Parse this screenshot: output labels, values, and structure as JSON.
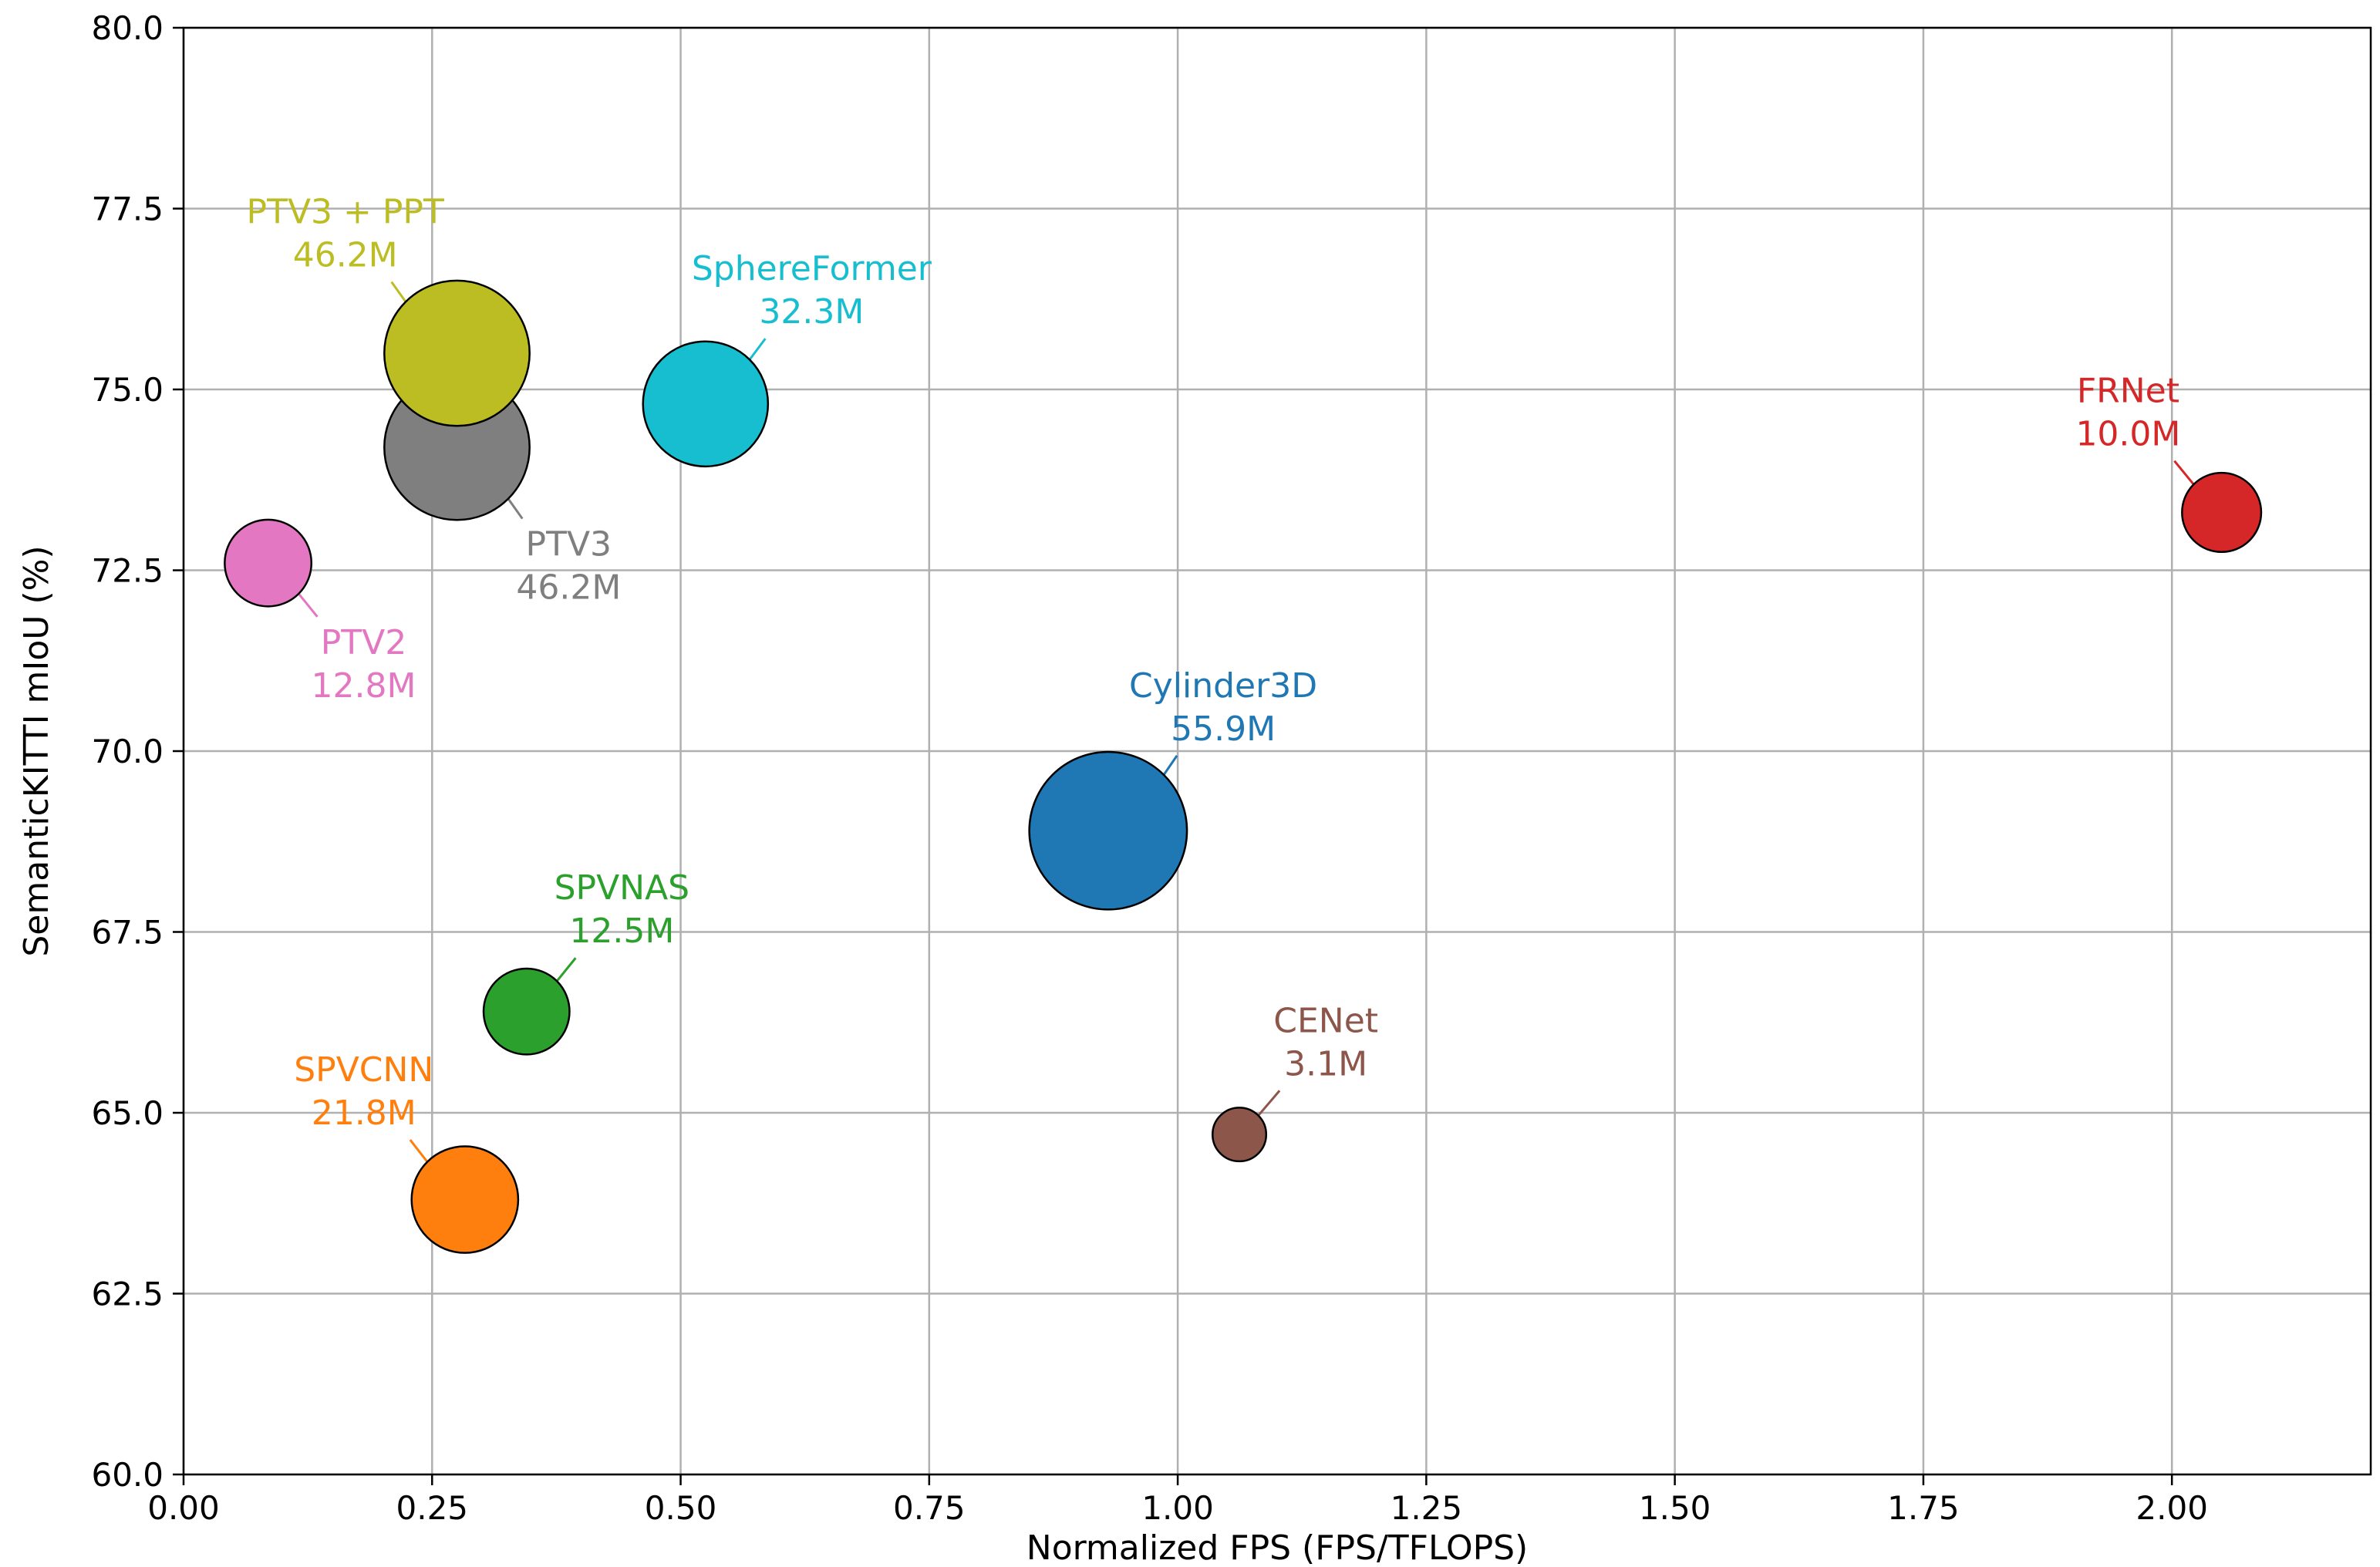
{
  "chart_data": {
    "type": "scatter",
    "title": "",
    "xlabel": "Normalized FPS (FPS/TFLOPS)",
    "ylabel": "SemanticKITTI mIoU (%)",
    "xlim": [
      0.0,
      2.2
    ],
    "ylim": [
      60.0,
      80.0
    ],
    "grid": true,
    "xticks": [
      0.0,
      0.25,
      0.5,
      0.75,
      1.0,
      1.25,
      1.5,
      1.75,
      2.0
    ],
    "xtick_labels": [
      "0.00",
      "0.25",
      "0.50",
      "0.75",
      "1.00",
      "1.25",
      "1.50",
      "1.75",
      "2.00"
    ],
    "yticks": [
      60.0,
      62.5,
      65.0,
      67.5,
      70.0,
      72.5,
      75.0,
      77.5,
      80.0
    ],
    "ytick_labels": [
      "60.0",
      "62.5",
      "65.0",
      "67.5",
      "70.0",
      "72.5",
      "75.0",
      "77.5",
      "80.0"
    ],
    "bubble_size_meaning": "parameter count (M)",
    "points": [
      {
        "name": "PTV3",
        "params_label": "46.2M",
        "params": 46.2,
        "x": 0.275,
        "y": 74.2,
        "color": "#7f7f7f",
        "label_anchor": "bottom-right"
      },
      {
        "name": "PTV3 + PPT",
        "params_label": "46.2M",
        "params": 46.2,
        "x": 0.275,
        "y": 75.5,
        "color": "#bcbd22",
        "label_anchor": "top-left"
      },
      {
        "name": "SphereFormer",
        "params_label": "32.3M",
        "params": 32.3,
        "x": 0.525,
        "y": 74.8,
        "color": "#17becf",
        "label_anchor": "top-right"
      },
      {
        "name": "FRNet",
        "params_label": "10.0M",
        "params": 10.0,
        "x": 2.05,
        "y": 73.3,
        "color": "#d62728",
        "label_anchor": "top-left"
      },
      {
        "name": "PTV2",
        "params_label": "12.8M",
        "params": 12.8,
        "x": 0.085,
        "y": 72.6,
        "color": "#e377c2",
        "label_anchor": "bottom-right"
      },
      {
        "name": "Cylinder3D",
        "params_label": "55.9M",
        "params": 55.9,
        "x": 0.93,
        "y": 68.9,
        "color": "#1f77b4",
        "label_anchor": "top-right"
      },
      {
        "name": "SPVNAS",
        "params_label": "12.5M",
        "params": 12.5,
        "x": 0.345,
        "y": 66.4,
        "color": "#2ca02c",
        "label_anchor": "top-right"
      },
      {
        "name": "CENet",
        "params_label": "3.1M",
        "params": 3.1,
        "x": 1.062,
        "y": 64.7,
        "color": "#8c564b",
        "label_anchor": "top-right"
      },
      {
        "name": "SPVCNN",
        "params_label": "21.8M",
        "params": 21.8,
        "x": 0.283,
        "y": 63.8,
        "color": "#ff7f0e",
        "label_anchor": "top-left"
      }
    ]
  }
}
